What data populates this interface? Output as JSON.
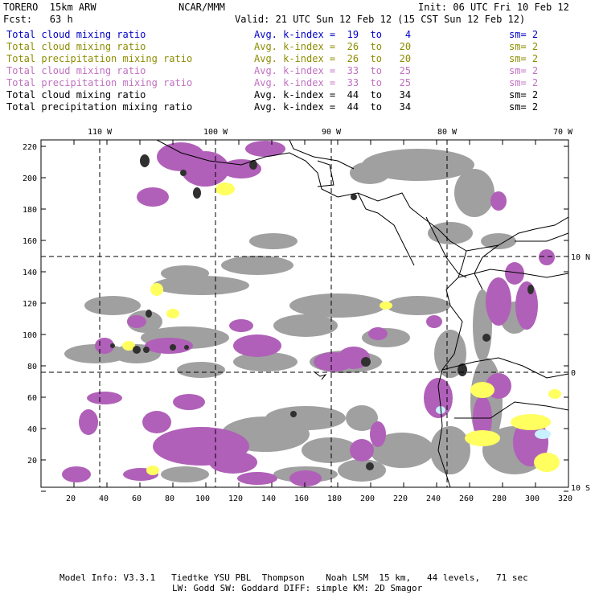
{
  "header": {
    "model": "TORERO  15km ARW",
    "org": "NCAR/MMM",
    "init": "Init: 06 UTC Fri 10 Feb 12",
    "fcst": "Fcst:   63 h",
    "valid": "Valid: 21 UTC Sun 12 Feb 12 (15 CST Sun 12 Feb 12)"
  },
  "legend": [
    {
      "field": "Total cloud mixing ratio",
      "kindex": "Avg. k-index =  19  to    4",
      "sm": "sm= 2",
      "color": "#0000c8"
    },
    {
      "field": "Total cloud mixing ratio",
      "kindex": "Avg. k-index =  26  to   20",
      "sm": "sm= 2",
      "color": "#8c8c00"
    },
    {
      "field": "Total precipitation mixing ratio",
      "kindex": "Avg. k-index =  26  to   20",
      "sm": "sm= 2",
      "color": "#8c8c00"
    },
    {
      "field": "Total cloud mixing ratio",
      "kindex": "Avg. k-index =  33  to   25",
      "sm": "sm= 2",
      "color": "#c070c0"
    },
    {
      "field": "Total precipitation mixing ratio",
      "kindex": "Avg. k-index =  33  to   25",
      "sm": "sm= 2",
      "color": "#c070c0"
    },
    {
      "field": "Total cloud mixing ratio",
      "kindex": "Avg. k-index =  44  to   34",
      "sm": "sm= 2",
      "color": "#000000"
    },
    {
      "field": "Total precipitation mixing ratio",
      "kindex": "Avg. k-index =  44  to   34",
      "sm": "sm= 2",
      "color": "#000000"
    }
  ],
  "map": {
    "top_lon_labels": [
      "110 W",
      "100 W",
      "90 W",
      "80 W",
      "70 W"
    ],
    "bottom_x_labels": [
      "20",
      "40",
      "60",
      "80",
      "100",
      "120",
      "140",
      "160",
      "180",
      "200",
      "220",
      "240",
      "260",
      "280",
      "300",
      "320"
    ],
    "left_y_labels": [
      "220",
      "200",
      "180",
      "160",
      "140",
      "120",
      "100",
      "80",
      "60",
      "40",
      "20"
    ],
    "right_lat_labels": [
      "10 N",
      "0",
      "10 S"
    ],
    "colors": {
      "gray": "#a0a0a0",
      "dark": "#303030",
      "purple": "#b060b8",
      "yellow": "#ffff60",
      "cyan": "#c8f0ff"
    }
  },
  "footer": {
    "line1": "Model Info: V3.3.1   Tiedtke YSU PBL  Thompson    Noah LSM  15 km,   44 levels,   71 sec",
    "line2": "LW: Godd SW: Goddard DIFF: simple KM: 2D Smagor"
  }
}
